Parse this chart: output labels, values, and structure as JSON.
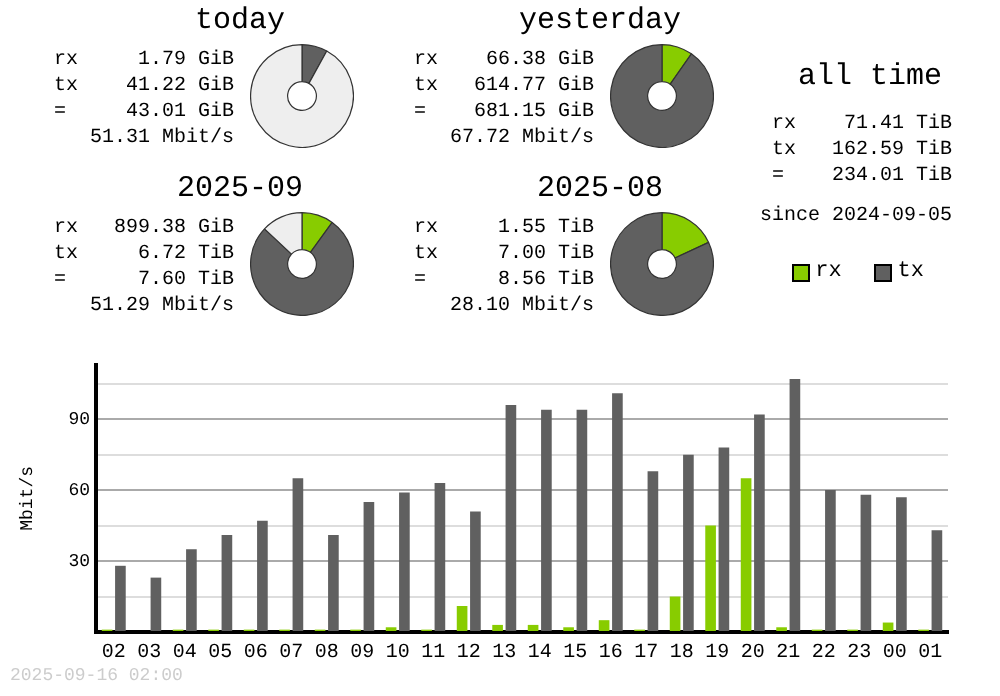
{
  "chart_data": [
    {
      "type": "donut",
      "title": "today",
      "categories": [
        null,
        null,
        null
      ],
      "values": [
        null,
        8.0,
        92.0
      ],
      "colors": [
        "#88cc00",
        "#606060",
        "#eeeeee"
      ],
      "annotations": [
        "rx     1.79 GiB",
        "tx    41.22 GiB",
        "=     43.01 GiB",
        "51.31 Mbit/s"
      ]
    },
    {
      "type": "donut",
      "title": "yesterday",
      "categories": [
        null,
        null
      ],
      "values": [
        9.7,
        90.3
      ],
      "colors": [
        "#88cc00",
        "#606060"
      ],
      "annotations": [
        "rx    66.38 GiB",
        "tx   614.77 GiB",
        "=    681.15 GiB",
        "67.72 Mbit/s"
      ]
    },
    {
      "type": "donut",
      "title": "2025-09",
      "categories": [
        null,
        null,
        null
      ],
      "values": [
        10,
        77,
        13
      ],
      "colors": [
        "#88cc00",
        "#606060",
        "#eeeeee"
      ],
      "annotations": [
        "rx   899.38 GiB",
        "tx     6.72 TiB",
        "=      7.60 TiB",
        "51.29 Mbit/s"
      ]
    },
    {
      "type": "donut",
      "title": "2025-08",
      "categories": [
        null,
        null
      ],
      "values": [
        18.1,
        81.9
      ],
      "colors": [
        "#88cc00",
        "#606060"
      ],
      "annotations": [
        "rx     1.55 TiB",
        "tx     7.00 TiB",
        "=      8.56 TiB",
        "28.10 Mbit/s"
      ]
    },
    {
      "type": "other",
      "title": "all time",
      "annotations": [
        "rx    71.41 TiB",
        "tx   162.59 TiB",
        "=    234.01 TiB",
        "since 2024-09-05"
      ]
    },
    {
      "type": "bar",
      "ylabel": "Mbit/s",
      "categories": [
        "02",
        "03",
        "04",
        "05",
        "06",
        "07",
        "08",
        "09",
        "10",
        "11",
        "12",
        "13",
        "14",
        "15",
        "16",
        "17",
        "18",
        "19",
        "20",
        "21",
        "22",
        "23",
        "00",
        "01"
      ],
      "series": [
        {
          "name": "rx",
          "color": "#88cc00",
          "values": [
            1,
            0,
            1,
            1,
            1,
            1,
            1,
            1,
            2,
            1,
            11,
            3,
            3,
            2,
            5,
            1,
            15,
            45,
            65,
            2,
            1,
            1,
            4,
            1
          ]
        },
        {
          "name": "tx",
          "color": "#606060",
          "values": [
            28,
            23,
            35,
            41,
            47,
            65,
            41,
            55,
            59,
            63,
            51,
            96,
            94,
            94,
            101,
            68,
            75,
            78,
            92,
            107,
            60,
            58,
            57,
            43
          ]
        }
      ],
      "ylim": [
        0,
        113
      ],
      "yticks": [
        {
          "value": 0,
          "label": null
        },
        {
          "value": 15,
          "label": null
        },
        30,
        {
          "value": 45,
          "label": null
        },
        60,
        {
          "value": 75,
          "label": null
        },
        90,
        {
          "value": 105,
          "label": null
        }
      ],
      "grid": "y",
      "legend": "top right",
      "annotations": [
        "2025-09-16 02:00"
      ]
    }
  ]
}
